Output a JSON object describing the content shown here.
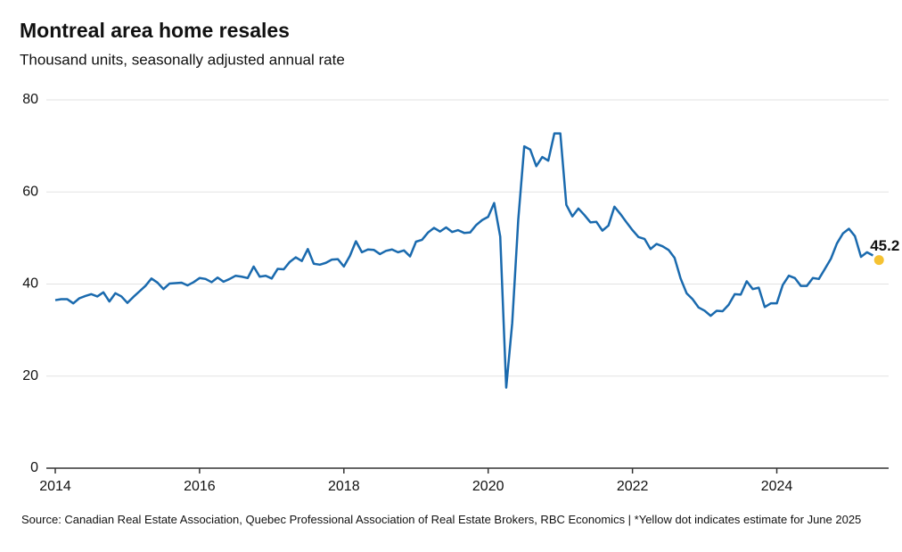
{
  "chart_data": {
    "type": "line",
    "title": "Montreal area home resales",
    "subtitle": "Thousand units, seasonally adjusted annual rate",
    "source": "Source: Canadian Real Estate Association, Quebec Professional Association of Real Estate Brokers, RBC Economics | *Yellow dot indicates estimate for June 2025",
    "xlim": [
      2014,
      2025.55
    ],
    "xticks": [
      2014,
      2016,
      2018,
      2020,
      2022,
      2024
    ],
    "ylim": [
      0,
      80
    ],
    "yticks": [
      0,
      20,
      40,
      60,
      80
    ],
    "grid": true,
    "series": [
      {
        "color": "#1a6aae",
        "x": [
          2014.0,
          2014.083,
          2014.167,
          2014.25,
          2014.333,
          2014.417,
          2014.5,
          2014.583,
          2014.667,
          2014.75,
          2014.833,
          2014.917,
          2015.0,
          2015.083,
          2015.167,
          2015.25,
          2015.333,
          2015.417,
          2015.5,
          2015.583,
          2015.667,
          2015.75,
          2015.833,
          2015.917,
          2016.0,
          2016.083,
          2016.167,
          2016.25,
          2016.333,
          2016.417,
          2016.5,
          2016.583,
          2016.667,
          2016.75,
          2016.833,
          2016.917,
          2017.0,
          2017.083,
          2017.167,
          2017.25,
          2017.333,
          2017.417,
          2017.5,
          2017.583,
          2017.667,
          2017.75,
          2017.833,
          2017.917,
          2018.0,
          2018.083,
          2018.167,
          2018.25,
          2018.333,
          2018.417,
          2018.5,
          2018.583,
          2018.667,
          2018.75,
          2018.833,
          2018.917,
          2019.0,
          2019.083,
          2019.167,
          2019.25,
          2019.333,
          2019.417,
          2019.5,
          2019.583,
          2019.667,
          2019.75,
          2019.833,
          2019.917,
          2020.0,
          2020.083,
          2020.167,
          2020.25,
          2020.333,
          2020.417,
          2020.5,
          2020.583,
          2020.667,
          2020.75,
          2020.833,
          2020.917,
          2021.0,
          2021.083,
          2021.167,
          2021.25,
          2021.333,
          2021.417,
          2021.5,
          2021.583,
          2021.667,
          2021.75,
          2021.833,
          2021.917,
          2022.0,
          2022.083,
          2022.167,
          2022.25,
          2022.333,
          2022.417,
          2022.5,
          2022.583,
          2022.667,
          2022.75,
          2022.833,
          2022.917,
          2023.0,
          2023.083,
          2023.167,
          2023.25,
          2023.333,
          2023.417,
          2023.5,
          2023.583,
          2023.667,
          2023.75,
          2023.833,
          2023.917,
          2024.0,
          2024.083,
          2024.167,
          2024.25,
          2024.333,
          2024.417,
          2024.5,
          2024.583,
          2024.667,
          2024.75,
          2024.833,
          2024.917,
          2025.0,
          2025.083,
          2025.167,
          2025.25,
          2025.333
        ],
        "values": [
          36.5,
          36.7,
          36.7,
          35.8,
          36.9,
          37.4,
          37.8,
          37.3,
          38.2,
          36.2,
          38.0,
          37.3,
          35.9,
          37.2,
          38.4,
          39.6,
          41.2,
          40.3,
          38.9,
          40.1,
          40.2,
          40.3,
          39.7,
          40.4,
          41.3,
          41.1,
          40.4,
          41.4,
          40.5,
          41.1,
          41.8,
          41.6,
          41.3,
          43.8,
          41.6,
          41.8,
          41.2,
          43.3,
          43.2,
          44.8,
          45.8,
          45.0,
          47.6,
          44.4,
          44.2,
          44.6,
          45.3,
          45.4,
          43.8,
          46.1,
          49.3,
          46.9,
          47.5,
          47.4,
          46.5,
          47.2,
          47.5,
          46.9,
          47.3,
          46.0,
          49.2,
          49.6,
          51.2,
          52.2,
          51.4,
          52.3,
          51.3,
          51.7,
          51.1,
          51.2,
          52.8,
          53.9,
          54.6,
          57.6,
          50.3,
          17.5,
          31.5,
          54.0,
          69.9,
          69.2,
          65.6,
          67.6,
          66.8,
          72.7,
          72.7,
          57.2,
          54.7,
          56.4,
          55.0,
          53.4,
          53.5,
          51.6,
          52.7,
          56.8,
          55.2,
          53.4,
          51.7,
          50.2,
          49.8,
          47.6,
          48.7,
          48.2,
          47.4,
          45.7,
          41.2,
          38.0,
          36.7,
          34.9,
          34.2,
          33.1,
          34.2,
          34.1,
          35.5,
          37.8,
          37.7,
          40.6,
          38.9,
          39.2,
          35.0,
          35.8,
          35.8,
          39.8,
          41.8,
          41.3,
          39.6,
          39.6,
          41.3,
          41.1,
          43.3,
          45.5,
          48.8,
          51.0,
          52.0,
          50.4,
          45.9,
          46.9,
          46.2
        ]
      },
      {
        "color": "#f5c232",
        "x": [
          2025.417
        ],
        "values": [
          45.2
        ]
      }
    ]
  }
}
